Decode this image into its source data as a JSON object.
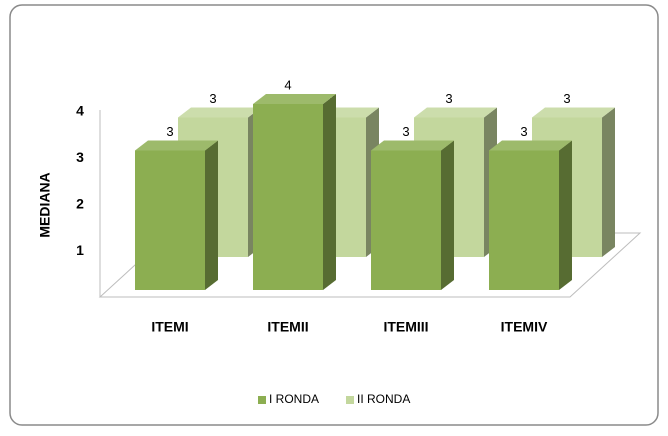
{
  "chart_data": {
    "type": "bar3d",
    "y_label": "MEDIANA",
    "categories": [
      "ITEMI",
      "ITEMII",
      "ITEMIII",
      "ITEMIV"
    ],
    "series": [
      {
        "name": "I RONDA",
        "color": "#8cae51",
        "values": [
          3,
          4,
          3,
          3
        ]
      },
      {
        "name": "II RONDA",
        "color": "#c3d79d",
        "values": [
          3,
          3,
          3,
          3
        ]
      }
    ],
    "ylim": [
      0,
      4
    ],
    "yticks": [
      1,
      2,
      3,
      4
    ],
    "legend": "bottom"
  }
}
